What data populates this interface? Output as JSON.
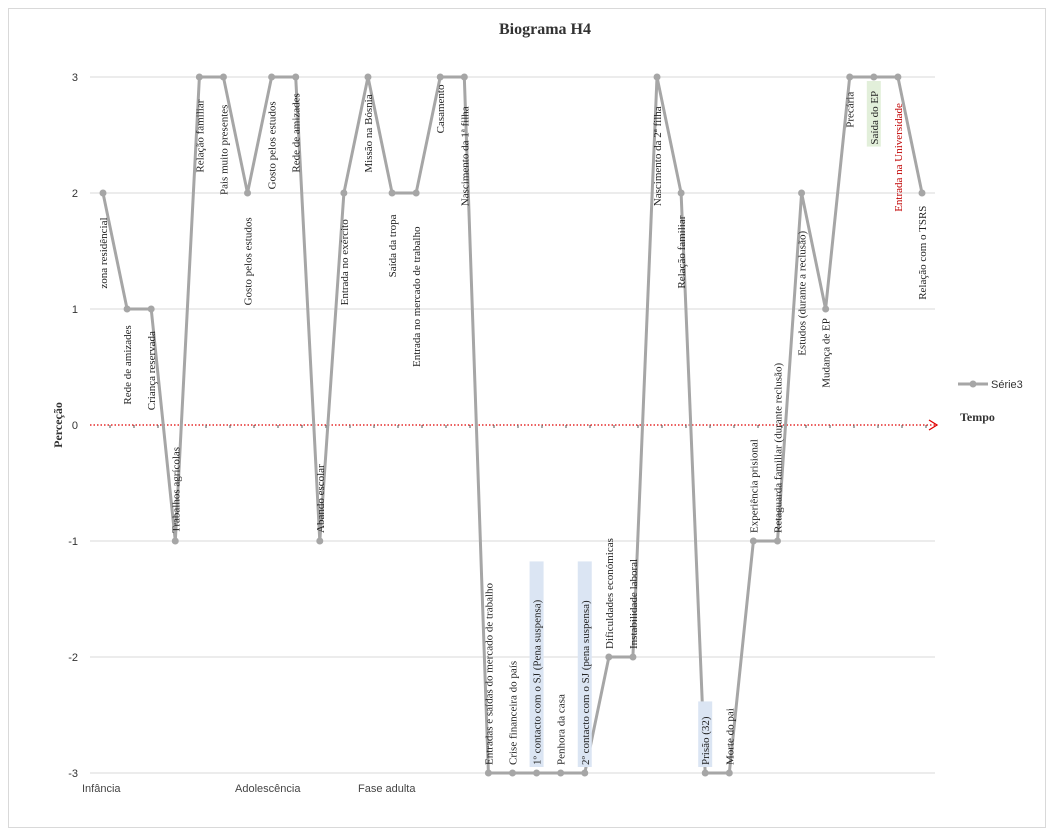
{
  "chart_data": {
    "type": "line",
    "title": "Biograma H4",
    "ylabel": "Perceção",
    "xlabel": "Tempo",
    "ylim": [
      -3,
      3
    ],
    "yticks": [
      3,
      2,
      1,
      0,
      -1,
      -2,
      -3
    ],
    "grid": true,
    "legend_position": "right",
    "line_color": "#a6a6a6",
    "zero_line_color": "#e00000",
    "phase_labels": [
      "Infância",
      "Adolescência",
      "Fase adulta"
    ],
    "series": [
      {
        "name": "Série3",
        "points": [
          {
            "label": "zona residêncial",
            "value": 2
          },
          {
            "label": "Rede de amizades",
            "value": 1
          },
          {
            "label": "Criança reservada",
            "value": 1
          },
          {
            "label": "Trabalhos agrícolas",
            "value": -1
          },
          {
            "label": "Relação familiar",
            "value": 3
          },
          {
            "label": "Pais muito presentes",
            "value": 3
          },
          {
            "label": "Gosto pelos estudos",
            "value": 2
          },
          {
            "label": "Gosto pelos estudos",
            "value": 3
          },
          {
            "label": "Rede de amizades",
            "value": 3
          },
          {
            "label": "Abando escolar",
            "value": -1
          },
          {
            "label": "Entrada no exército",
            "value": 2
          },
          {
            "label": "Missão na Bósnia",
            "value": 3
          },
          {
            "label": "Saída da tropa",
            "value": 2
          },
          {
            "label": "Entrada no mercado de trabalho",
            "value": 2
          },
          {
            "label": "Casamento",
            "value": 3
          },
          {
            "label": "Nascimento da 1ª filha",
            "value": 3
          },
          {
            "label": "Entradas e saídas do mercado de trabalho",
            "value": -3
          },
          {
            "label": "Crise financeira do país",
            "value": -3
          },
          {
            "label": "1º contacto com o SJ (Pena suspensa)",
            "value": -3,
            "highlight": "#dbe5f3"
          },
          {
            "label": "Penhora da casa",
            "value": -3
          },
          {
            "label": "2º contacto com o SJ (pena suspensa)",
            "value": -3,
            "highlight": "#dbe5f3"
          },
          {
            "label": "Dificuldades económicas",
            "value": -2
          },
          {
            "label": "Instabilidade laboral",
            "value": -2
          },
          {
            "label": "Nascimento da 2ª filha",
            "value": 3
          },
          {
            "label": "Relação familiar",
            "value": 2
          },
          {
            "label": "Prisão (32)",
            "value": -3,
            "highlight": "#dbe5f3"
          },
          {
            "label": "Morte do pai",
            "value": -3
          },
          {
            "label": "Experiência prisional",
            "value": -1
          },
          {
            "label": "Retaguarda familiar (durante reclusão)",
            "value": -1
          },
          {
            "label": "Estudos (durante a reclusão)",
            "value": 2
          },
          {
            "label": "Mudança de EP",
            "value": 1
          },
          {
            "label": "Precária",
            "value": 3
          },
          {
            "label": "Saída do EP",
            "value": 3,
            "highlight": "#e2efda"
          },
          {
            "label": "Entrada na Universidade",
            "value": 3,
            "color": "#c00000"
          },
          {
            "label": "Relação com o TSRS",
            "value": 2
          }
        ]
      }
    ]
  }
}
